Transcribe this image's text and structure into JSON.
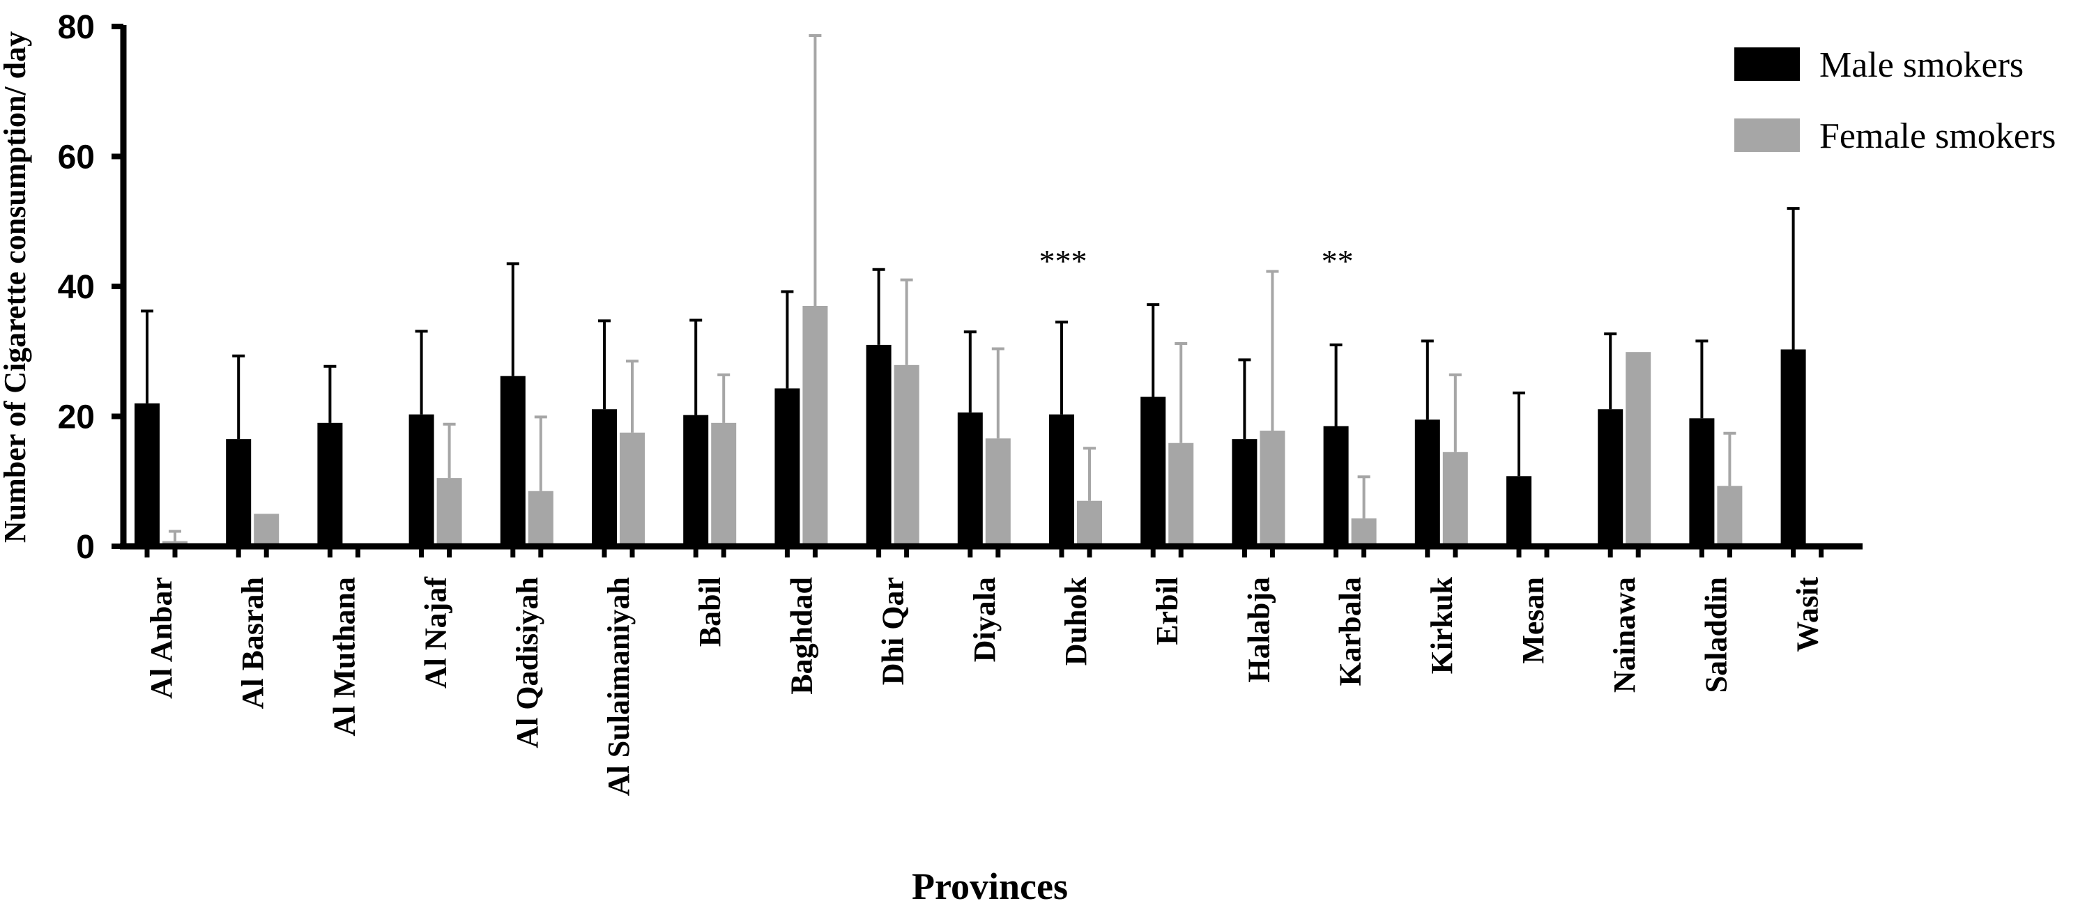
{
  "chart_data": {
    "type": "bar",
    "title": "",
    "xlabel": "Provinces",
    "ylabel": "Number of Cigarette consumption/ day",
    "ylim": [
      0,
      80
    ],
    "yticks": [
      0,
      20,
      40,
      60,
      80
    ],
    "grid": false,
    "legend_position": "top-right",
    "categories": [
      "Al Anbar",
      "Al Basrah",
      "Al Muthana",
      "Al Najaf",
      "Al Qadisiyah",
      "Al Sulaimaniyah",
      "Babil",
      "Baghdad",
      "Dhi Qar",
      "Diyala",
      "Duhok",
      "Erbil",
      "Halabja",
      "Karbala",
      "Kirkuk",
      "Mesan",
      "Nainawa",
      "Saladdin",
      "Wasit"
    ],
    "series": [
      {
        "name": "Male smokers",
        "color": "#000000",
        "values": [
          22.0,
          16.5,
          19.0,
          20.3,
          26.2,
          21.1,
          20.2,
          24.3,
          31.0,
          20.6,
          20.3,
          23.0,
          16.5,
          18.5,
          19.5,
          10.8,
          21.1,
          19.7,
          30.3
        ],
        "error": [
          14.2,
          12.8,
          8.7,
          12.8,
          17.3,
          13.6,
          14.6,
          14.9,
          11.6,
          12.4,
          14.2,
          14.2,
          12.2,
          12.5,
          12.1,
          12.8,
          11.6,
          11.9,
          21.7
        ]
      },
      {
        "name": "Female smokers",
        "color": "#a6a6a6",
        "values": [
          0.8,
          5.0,
          null,
          10.5,
          8.5,
          17.5,
          19.0,
          37.0,
          27.9,
          16.6,
          7.0,
          15.9,
          17.8,
          4.3,
          14.5,
          null,
          29.9,
          9.3,
          null
        ],
        "error": [
          1.5,
          0,
          null,
          8.3,
          11.4,
          11.0,
          7.4,
          41.6,
          13.1,
          13.8,
          8.1,
          15.3,
          24.5,
          6.4,
          11.9,
          null,
          0,
          8.1,
          null
        ]
      }
    ],
    "annotations": [
      {
        "category": "Duhok",
        "text": "***"
      },
      {
        "category": "Karbala",
        "text": "**"
      }
    ]
  }
}
